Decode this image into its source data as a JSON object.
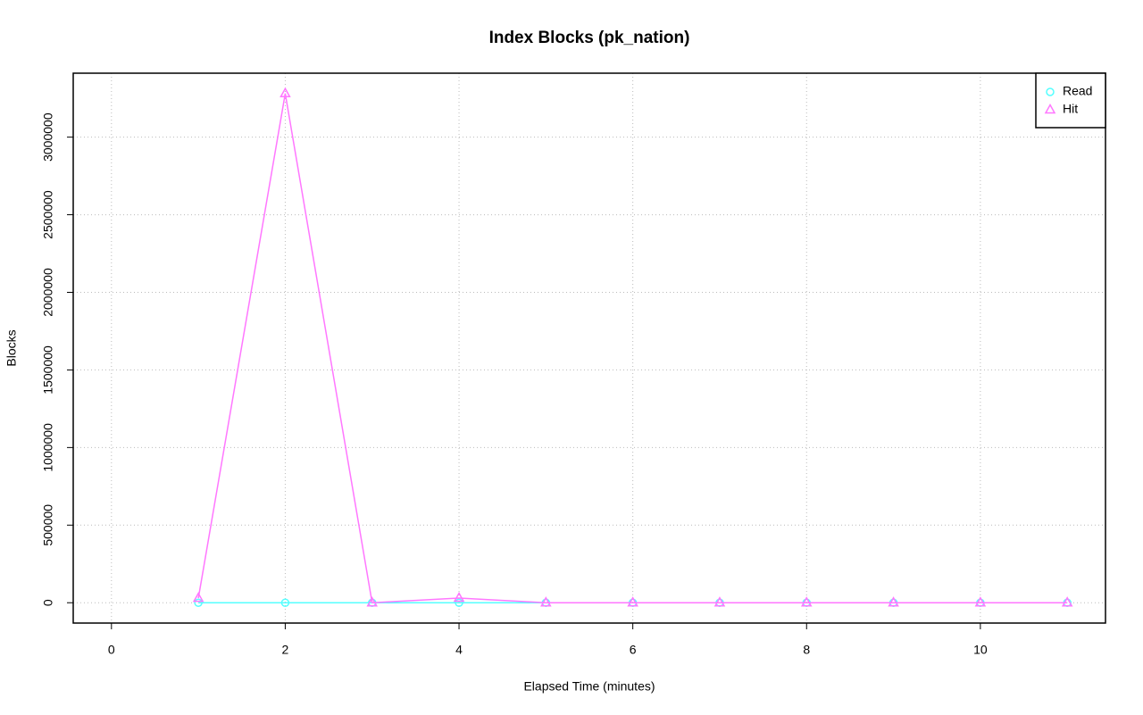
{
  "chart_data": {
    "type": "line",
    "title": "Index Blocks (pk_nation)",
    "x_label": "Elapsed Time (minutes)",
    "y_label": "Blocks",
    "x": [
      1,
      2,
      3,
      4,
      5,
      6,
      7,
      8,
      9,
      10,
      11
    ],
    "series": [
      {
        "name": "Read",
        "color": "#55ffff",
        "marker": "circle",
        "values": [
          0,
          0,
          0,
          0,
          0,
          0,
          0,
          0,
          0,
          0,
          0
        ]
      },
      {
        "name": "Hit",
        "color": "#ff77ff",
        "marker": "triangle",
        "values": [
          29000,
          3281000,
          0,
          30000,
          0,
          0,
          0,
          0,
          0,
          0,
          0
        ]
      }
    ],
    "xlim": [
      -0.44,
      11.44
    ],
    "xticks": [
      0,
      2,
      4,
      6,
      8,
      10
    ],
    "ylim": [
      -131000,
      3412000
    ],
    "yticks": [
      0,
      500000,
      1000000,
      1500000,
      2000000,
      2500000,
      3000000
    ],
    "grid": true,
    "legend": "topright"
  }
}
